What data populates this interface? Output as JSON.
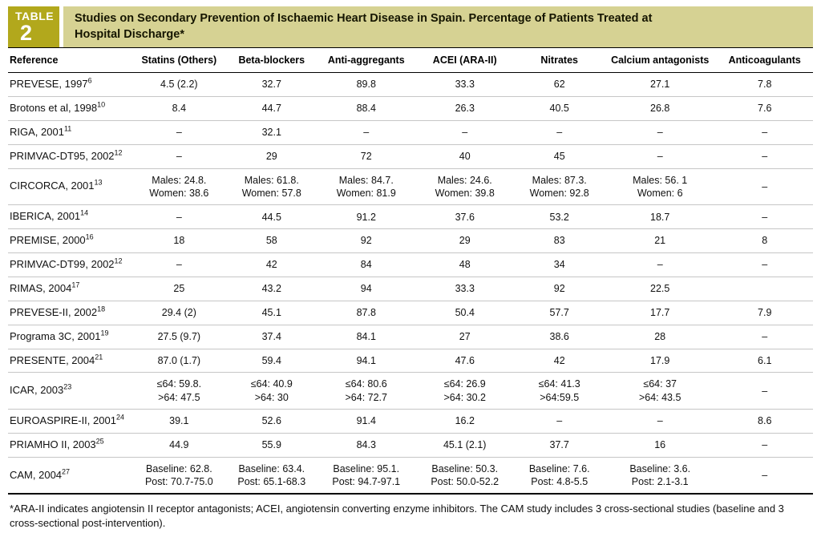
{
  "badge": {
    "label": "TABLE",
    "number": "2"
  },
  "title": "Studies on Secondary Prevention of Ischaemic Heart Disease in Spain. Percentage of Patients Treated at Hospital Discharge*",
  "colors": {
    "badge_bg": "#b2a81c",
    "banner_bg": "#d6d293"
  },
  "table": {
    "columns": [
      "Reference",
      "Statins (Others)",
      "Beta-blockers",
      "Anti-aggregants",
      "ACEI (ARA-II)",
      "Nitrates",
      "Calcium antagonists",
      "Anticoagulants"
    ],
    "rows": [
      {
        "reference": "PREVESE, 1997",
        "sup": "6",
        "cells": [
          "4.5 (2.2)",
          "32.7",
          "89.8",
          "33.3",
          "62",
          "27.1",
          "7.8"
        ]
      },
      {
        "reference": "Brotons et al, 1998",
        "sup": "10",
        "cells": [
          "8.4",
          "44.7",
          "88.4",
          "26.3",
          "40.5",
          "26.8",
          "7.6"
        ]
      },
      {
        "reference": "RIGA, 2001",
        "sup": "11",
        "cells": [
          "–",
          "32.1",
          "–",
          "–",
          "–",
          "–",
          "–"
        ]
      },
      {
        "reference": "PRIMVAC-DT95, 2002",
        "sup": "12",
        "cells": [
          "–",
          "29",
          "72",
          "40",
          "45",
          "–",
          "–"
        ]
      },
      {
        "reference": "CIRCORCA, 2001",
        "sup": "13",
        "cells": [
          "Males: 24.8.\nWomen: 38.6",
          "Males: 61.8.\nWomen: 57.8",
          "Males: 84.7.\nWomen: 81.9",
          "Males: 24.6.\nWomen: 39.8",
          "Males: 87.3.\nWomen: 92.8",
          "Males: 56. 1\nWomen: 6",
          "–"
        ]
      },
      {
        "reference": "IBERICA, 2001",
        "sup": "14",
        "cells": [
          "–",
          "44.5",
          "91.2",
          "37.6",
          "53.2",
          "18.7",
          "–"
        ]
      },
      {
        "reference": "PREMISE, 2000",
        "sup": "16",
        "cells": [
          "18",
          "58",
          "92",
          "29",
          "83",
          "21",
          "8"
        ]
      },
      {
        "reference": "PRIMVAC-DT99, 2002",
        "sup": "12",
        "cells": [
          "–",
          "42",
          "84",
          "48",
          "34",
          "–",
          "–"
        ]
      },
      {
        "reference": "RIMAS, 2004",
        "sup": "17",
        "cells": [
          "25",
          "43.2",
          "94",
          "33.3",
          "92",
          "22.5",
          ""
        ]
      },
      {
        "reference": "PREVESE-II, 2002",
        "sup": "18",
        "cells": [
          "29.4 (2)",
          "45.1",
          "87.8",
          "50.4",
          "57.7",
          "17.7",
          "7.9"
        ]
      },
      {
        "reference": "Programa 3C, 2001",
        "sup": "19",
        "cells": [
          "27.5 (9.7)",
          "37.4",
          "84.1",
          "27",
          "38.6",
          "28",
          "–"
        ]
      },
      {
        "reference": "PRESENTE, 2004",
        "sup": "21",
        "cells": [
          "87.0 (1.7)",
          "59.4",
          "94.1",
          "47.6",
          "42",
          "17.9",
          "6.1"
        ]
      },
      {
        "reference": "ICAR, 2003",
        "sup": "23",
        "cells": [
          "≤64: 59.8.\n>64: 47.5",
          "≤64: 40.9\n>64: 30",
          "≤64: 80.6\n>64: 72.7",
          "≤64: 26.9\n>64: 30.2",
          "≤64: 41.3\n>64:59.5",
          "≤64: 37\n>64: 43.5",
          "–"
        ]
      },
      {
        "reference": "EUROASPIRE-II, 2001",
        "sup": "24",
        "cells": [
          "39.1",
          "52.6",
          "91.4",
          "16.2",
          "–",
          "–",
          "8.6"
        ]
      },
      {
        "reference": "PRIAMHO II, 2003",
        "sup": "25",
        "cells": [
          "44.9",
          "55.9",
          "84.3",
          "45.1 (2.1)",
          "37.7",
          "16",
          "–"
        ]
      },
      {
        "reference": "CAM, 2004",
        "sup": "27",
        "cells": [
          "Baseline: 62.8.\nPost: 70.7-75.0",
          "Baseline: 63.4.\nPost: 65.1-68.3",
          "Baseline: 95.1.\nPost: 94.7-97.1",
          "Baseline: 50.3.\nPost: 50.0-52.2",
          "Baseline: 7.6.\nPost: 4.8-5.5",
          "Baseline: 3.6.\nPost: 2.1-3.1",
          "–"
        ]
      }
    ]
  },
  "footnote": "*ARA-II indicates angiotensin II receptor antagonists; ACEI, angiotensin converting enzyme inhibitors. The CAM study includes 3 cross-sectional studies (baseline and 3 cross-sectional post-intervention)."
}
